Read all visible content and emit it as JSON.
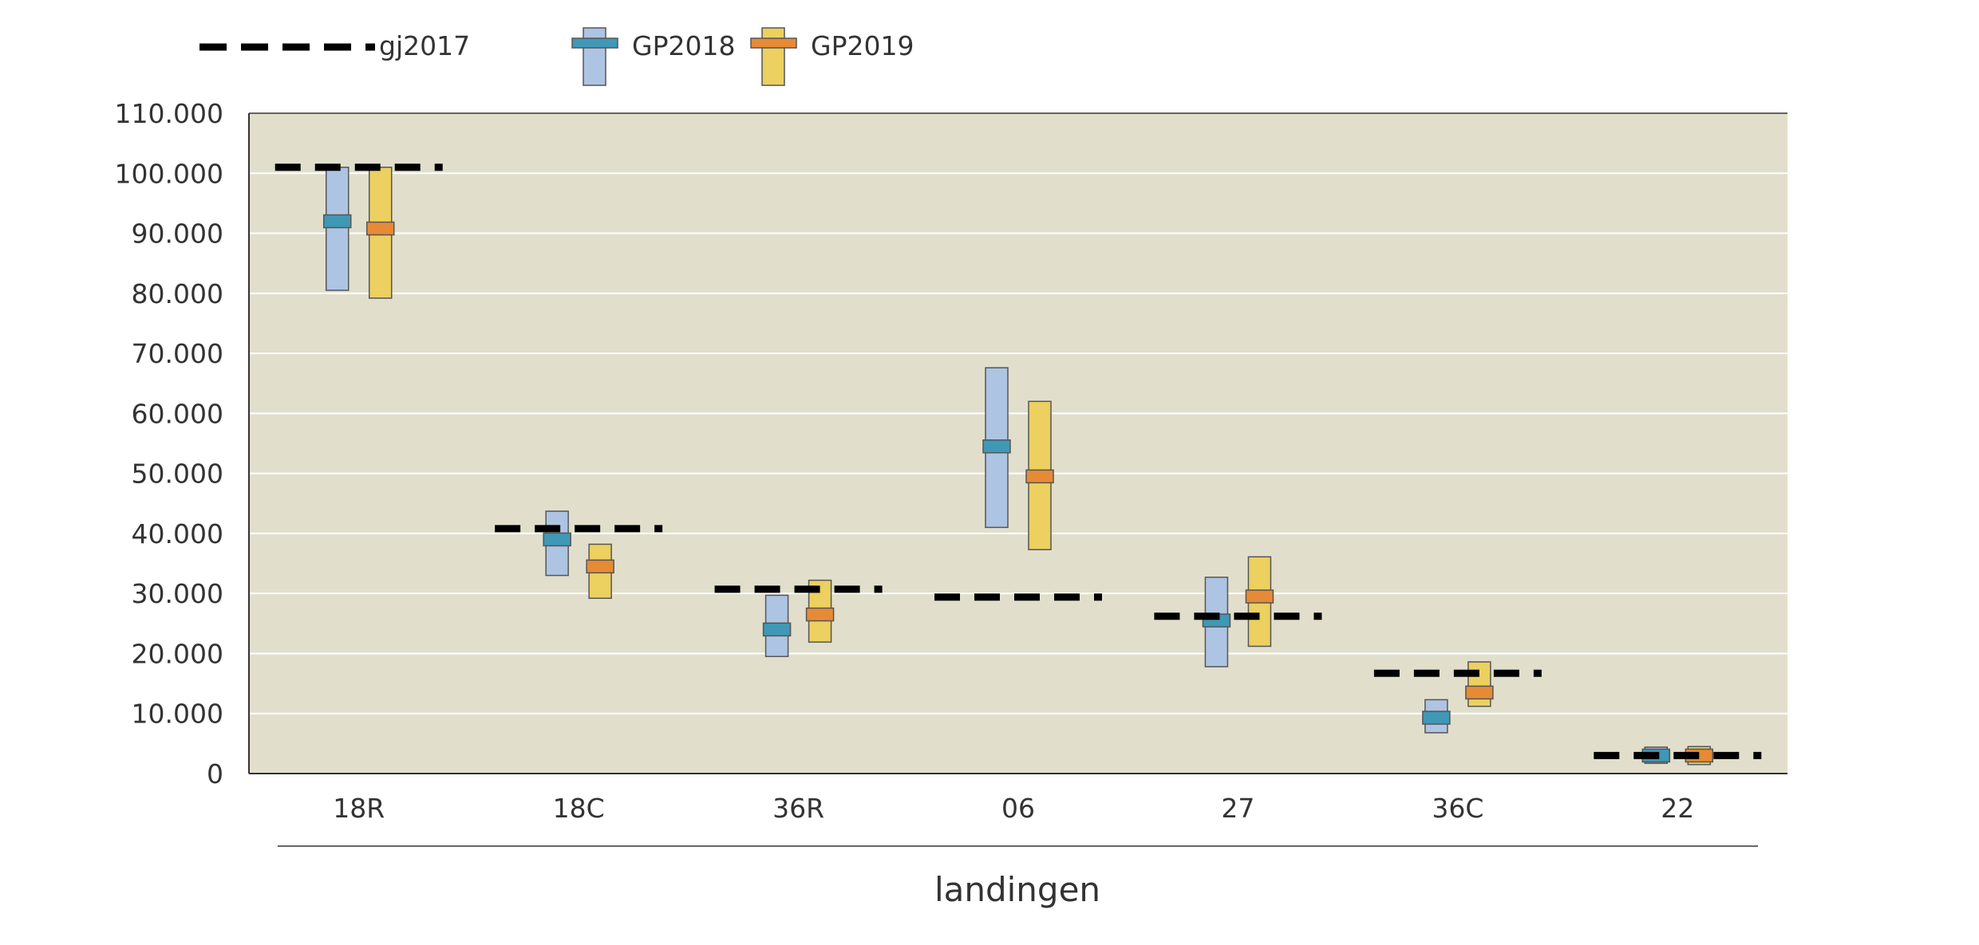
{
  "chart_data": {
    "type": "range",
    "categories": [
      "18R",
      "18C",
      "36R",
      "06",
      "27",
      "36C",
      "22"
    ],
    "xlabel": "landingen",
    "ylabel": "",
    "ylim": [
      0,
      110000
    ],
    "yticks": [
      0,
      10000,
      20000,
      30000,
      40000,
      50000,
      60000,
      70000,
      80000,
      90000,
      100000,
      110000
    ],
    "ytick_labels": [
      "0",
      "10.000",
      "20.000",
      "30.000",
      "40.000",
      "50.000",
      "60.000",
      "70.000",
      "80.000",
      "90.000",
      "100.000",
      "110.000"
    ],
    "grid": true,
    "legend_position": "top-left",
    "series": [
      {
        "name": "gj2017",
        "kind": "reference-line",
        "values": [
          101000,
          40800,
          30700,
          29400,
          26200,
          16700,
          3000
        ]
      },
      {
        "name": "GP2018",
        "kind": "range-with-median",
        "low": [
          80500,
          33000,
          19500,
          41000,
          17800,
          6800,
          1700
        ],
        "high": [
          101000,
          43700,
          29700,
          67600,
          32700,
          12300,
          4400
        ],
        "mid": [
          92000,
          39000,
          24000,
          54500,
          25500,
          9300,
          3000
        ]
      },
      {
        "name": "GP2019",
        "kind": "range-with-median",
        "low": [
          79200,
          29200,
          21900,
          37300,
          21200,
          11200,
          1500
        ],
        "high": [
          101000,
          38200,
          32200,
          62000,
          36100,
          18600,
          4500
        ],
        "mid": [
          90800,
          34500,
          26500,
          49500,
          29500,
          13500,
          3000
        ]
      }
    ],
    "colors": {
      "plot_background": "#e1dfcc",
      "gridline": "#ffffff",
      "gp2018_bar": "#aec4e3",
      "gp2018_median": "#3f98b5",
      "gp2019_bar": "#ecd060",
      "gp2019_median": "#e68a35",
      "gj2017_line": "#000000",
      "outline": "#555555"
    }
  }
}
